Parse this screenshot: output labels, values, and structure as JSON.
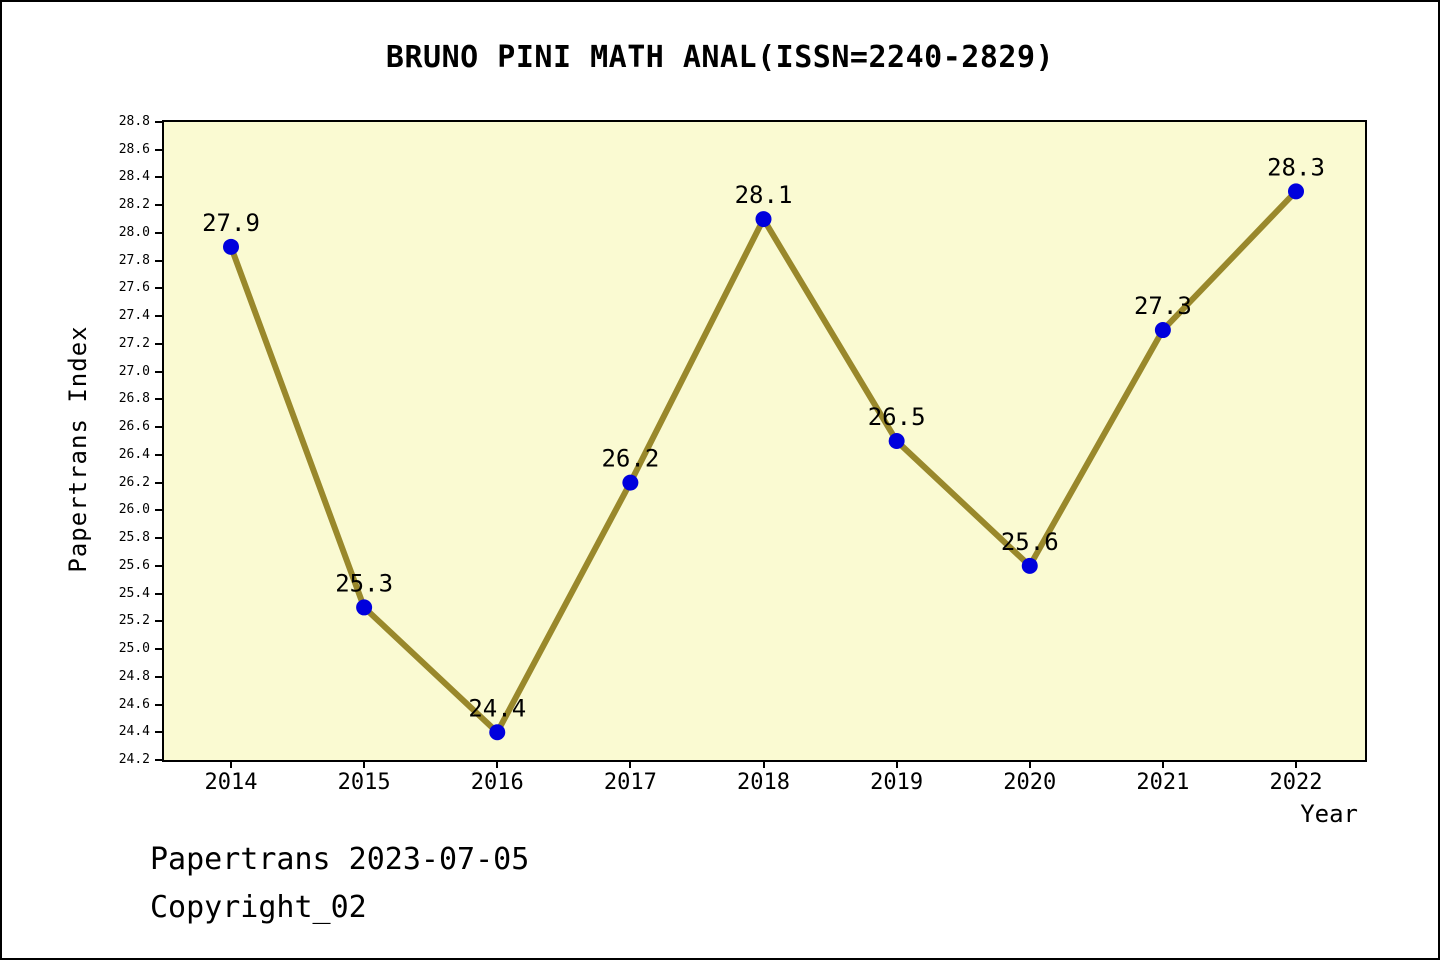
{
  "chart_data": {
    "type": "line",
    "title": "BRUNO PINI MATH ANAL(ISSN=2240-2829)",
    "xlabel": "Year",
    "ylabel": "Papertrans Index",
    "categories": [
      "2014",
      "2015",
      "2016",
      "2017",
      "2018",
      "2019",
      "2020",
      "2021",
      "2022"
    ],
    "values": [
      27.9,
      25.3,
      24.4,
      26.2,
      28.1,
      26.5,
      25.6,
      27.3,
      28.3
    ],
    "point_labels": [
      "27.9",
      "25.3",
      "24.4",
      "26.2",
      "28.1",
      "26.5",
      "25.6",
      "27.3",
      "28.3"
    ],
    "ylim": [
      24.2,
      28.8
    ],
    "ytick_step": 0.2,
    "grid": false,
    "legend": null,
    "colors": {
      "line": "#99882B",
      "marker": "#0000DD",
      "plot_bg": "#FAFAD2",
      "axis": "#000000",
      "label": "#000000"
    }
  },
  "footer": {
    "line1": "Papertrans 2023-07-05",
    "line2": "Copyright_02"
  }
}
